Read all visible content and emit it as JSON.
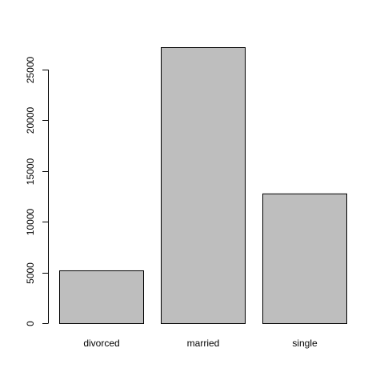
{
  "chart_data": {
    "type": "bar",
    "categories": [
      "divorced",
      "married",
      "single"
    ],
    "values": [
      5207,
      27214,
      12790
    ],
    "title": "",
    "xlabel": "",
    "ylabel": "",
    "ylim": [
      0,
      27214
    ],
    "yticks": [
      0,
      5000,
      10000,
      15000,
      20000,
      25000
    ],
    "ytick_labels": [
      "0",
      "5000",
      "10000",
      "15000",
      "20000",
      "25000"
    ],
    "grid": false,
    "colors": {
      "bar_fill": "#bebebe",
      "bar_stroke": "#000000",
      "axis": "#000000",
      "background": "#ffffff"
    }
  }
}
